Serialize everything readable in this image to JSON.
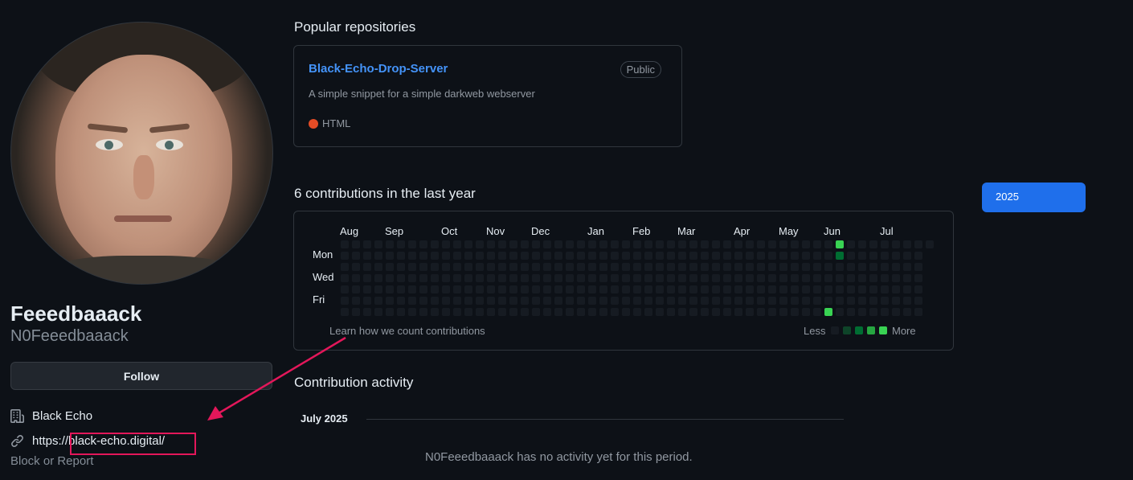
{
  "profile": {
    "display_name": "Feeedbaaack",
    "username": "N0Feeedbaaack",
    "follow_label": "Follow",
    "organization": "Black Echo",
    "website": "https://black-echo.digital/",
    "block_report": "Block or Report"
  },
  "popular": {
    "heading": "Popular repositories",
    "repos": [
      {
        "name": "Black-Echo-Drop-Server",
        "visibility": "Public",
        "description": "A simple snippet for a simple darkweb webserver",
        "language": "HTML",
        "language_color": "#e34c26"
      }
    ]
  },
  "contributions": {
    "heading": "6 contributions in the last year",
    "months": [
      "Aug",
      "Sep",
      "Oct",
      "Nov",
      "Dec",
      "Jan",
      "Feb",
      "Mar",
      "Apr",
      "May",
      "Jun",
      "Jul"
    ],
    "day_labels": [
      "Mon",
      "Wed",
      "Fri"
    ],
    "learn_link": "Learn how we count contributions",
    "legend_less": "Less",
    "legend_more": "More",
    "legend_colors": [
      "#161b22",
      "#0e4429",
      "#006d32",
      "#26a641",
      "#39d353"
    ],
    "weeks": 53,
    "active_cells": [
      {
        "week": 44,
        "day": 0,
        "level": 4
      },
      {
        "week": 44,
        "day": 1,
        "level": 2
      },
      {
        "week": 43,
        "day": 6,
        "level": 4
      }
    ]
  },
  "year_selector": {
    "selected": "2025"
  },
  "activity": {
    "heading": "Contribution activity",
    "period": "July 2025",
    "empty_message": "N0Feeedbaaack has no activity yet for this period."
  },
  "annotation": {
    "color": "#e3175a"
  }
}
